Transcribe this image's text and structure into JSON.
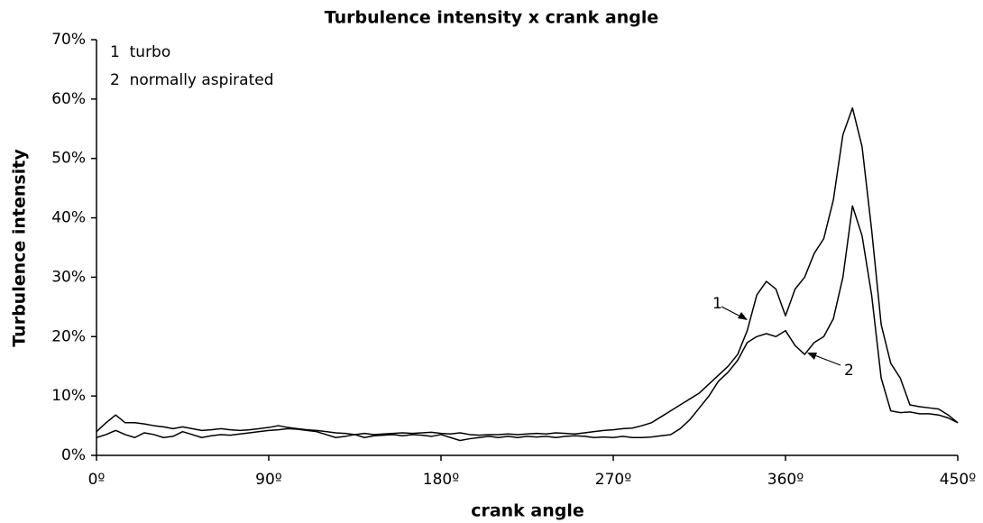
{
  "chart_data": {
    "type": "line",
    "title": "Turbulence intensity x crank angle",
    "xlabel": "crank angle",
    "ylabel": "Turbulence intensity",
    "xlim": [
      0,
      450
    ],
    "xticks": [
      {
        "value": 0,
        "label": "0º"
      },
      {
        "value": 90,
        "label": "90º"
      },
      {
        "value": 180,
        "label": "180º"
      },
      {
        "value": 270,
        "label": "270º"
      },
      {
        "value": 360,
        "label": "360º"
      },
      {
        "value": 450,
        "label": "450º"
      }
    ],
    "ylim": [
      0,
      70
    ],
    "yticks": [
      {
        "value": 0,
        "label": "0%"
      },
      {
        "value": 10,
        "label": "10%"
      },
      {
        "value": 20,
        "label": "20%"
      },
      {
        "value": 30,
        "label": "30%"
      },
      {
        "value": 40,
        "label": "40%"
      },
      {
        "value": 50,
        "label": "50%"
      },
      {
        "value": 60,
        "label": "60%"
      },
      {
        "value": 70,
        "label": "70%"
      }
    ],
    "grid": false,
    "legend": "upper left",
    "annotations": [
      "1",
      "2"
    ],
    "x": [
      0,
      5,
      10,
      15,
      20,
      25,
      30,
      35,
      40,
      45,
      50,
      55,
      60,
      65,
      70,
      75,
      80,
      85,
      90,
      95,
      100,
      105,
      110,
      115,
      120,
      125,
      130,
      135,
      140,
      145,
      150,
      155,
      160,
      165,
      170,
      175,
      180,
      185,
      190,
      195,
      200,
      205,
      210,
      215,
      220,
      225,
      230,
      235,
      240,
      245,
      250,
      255,
      260,
      265,
      270,
      275,
      280,
      285,
      290,
      295,
      300,
      305,
      310,
      315,
      320,
      325,
      330,
      335,
      340,
      345,
      350,
      355,
      360,
      365,
      370,
      375,
      380,
      385,
      390,
      395,
      400,
      405,
      410,
      415,
      420,
      425,
      430,
      435,
      440,
      445,
      450
    ],
    "series": [
      {
        "name": "1  turbo",
        "color": "#000000",
        "values": [
          4,
          5.5,
          6.8,
          5.5,
          5.5,
          5.3,
          5,
          4.8,
          4.5,
          4.8,
          4.5,
          4.2,
          4.3,
          4.5,
          4.3,
          4.2,
          4.3,
          4.5,
          4.7,
          5,
          4.7,
          4.5,
          4.3,
          4.2,
          4,
          3.8,
          3.7,
          3.5,
          3.7,
          3.5,
          3.6,
          3.7,
          3.8,
          3.7,
          3.8,
          3.9,
          3.7,
          3.6,
          3.8,
          3.5,
          3.4,
          3.5,
          3.5,
          3.6,
          3.5,
          3.6,
          3.7,
          3.6,
          3.8,
          3.7,
          3.6,
          3.8,
          4,
          4.2,
          4.3,
          4.5,
          4.6,
          5,
          5.5,
          6.5,
          7.5,
          8.5,
          9.5,
          10.5,
          12,
          13.5,
          15,
          17,
          21,
          27,
          29.3,
          28,
          23.5,
          28,
          30,
          34,
          36.5,
          43,
          54,
          58.5,
          52,
          38,
          22,
          15.5,
          13,
          8.5,
          8.2,
          8,
          7.8,
          6.8,
          5.5
        ]
      },
      {
        "name": "2  normally aspirated",
        "color": "#000000",
        "values": [
          3,
          3.5,
          4.2,
          3.5,
          3,
          3.8,
          3.5,
          3,
          3.2,
          4,
          3.5,
          3,
          3.3,
          3.5,
          3.4,
          3.6,
          3.8,
          4,
          4.2,
          4.3,
          4.5,
          4.4,
          4.2,
          4,
          3.5,
          3,
          3.2,
          3.5,
          3,
          3.3,
          3.4,
          3.5,
          3.3,
          3.5,
          3.4,
          3.2,
          3.5,
          3,
          2.5,
          2.8,
          3,
          3.2,
          3,
          3.2,
          3,
          3.2,
          3.1,
          3.2,
          3,
          3.2,
          3.3,
          3.2,
          3,
          3.1,
          3,
          3.2,
          3,
          3,
          3.1,
          3.3,
          3.5,
          4.5,
          6,
          8,
          10,
          12.5,
          14,
          16,
          19,
          20,
          20.5,
          20,
          21,
          18.5,
          17,
          19,
          20,
          23,
          30,
          42,
          37,
          27,
          13,
          7.5,
          7.2,
          7.3,
          7,
          7,
          6.8,
          6.3,
          5.5
        ]
      }
    ]
  }
}
